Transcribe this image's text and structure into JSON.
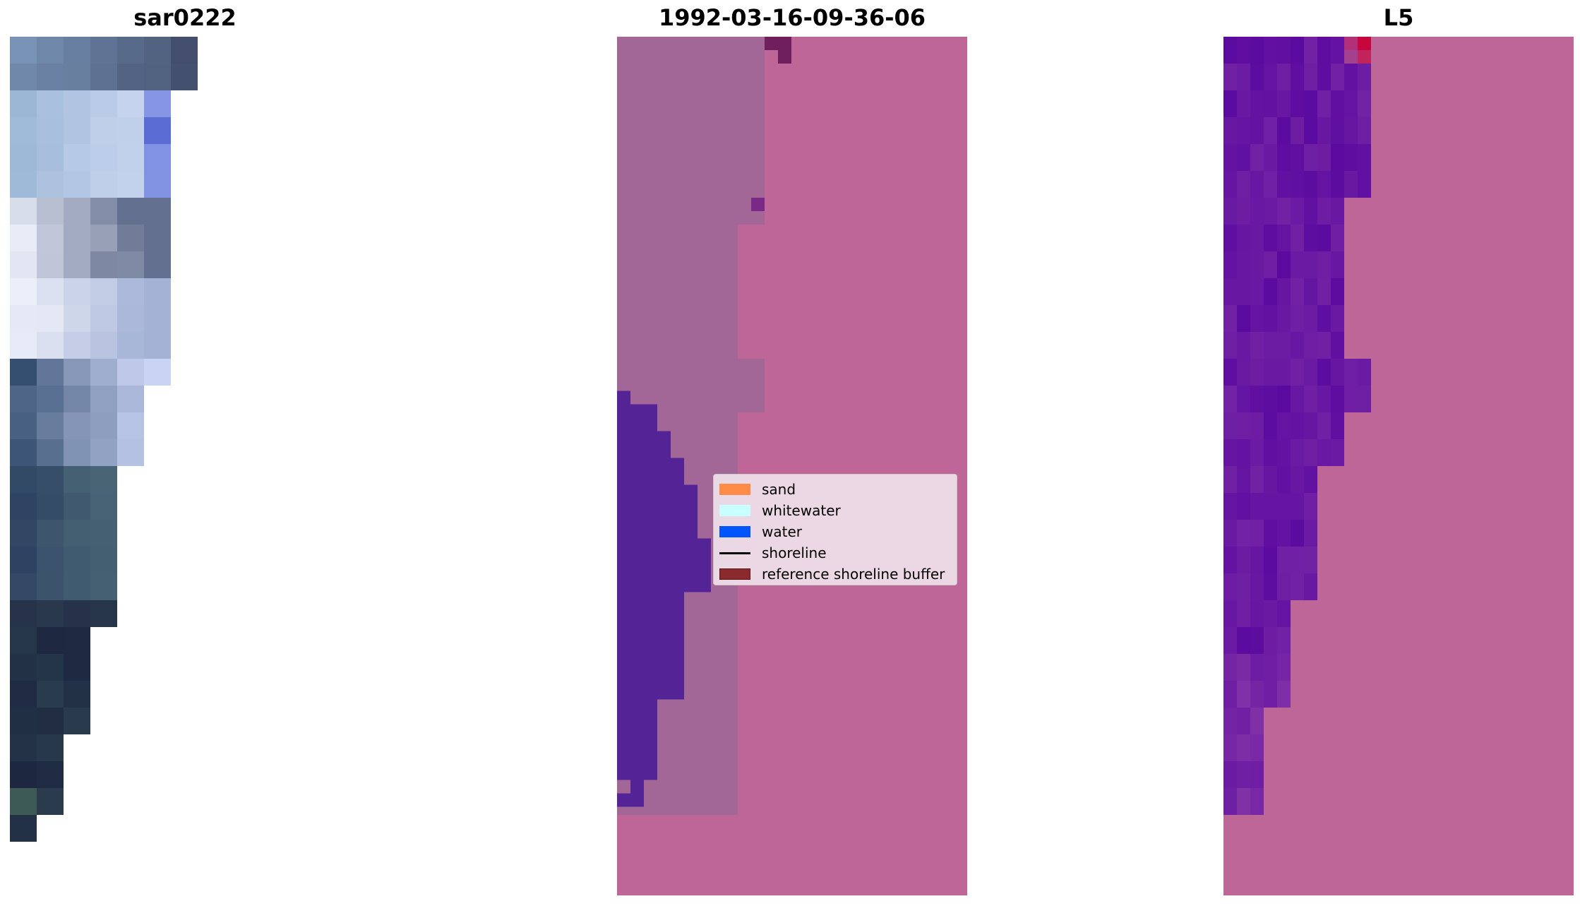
{
  "panels": [
    {
      "title": "sar0222"
    },
    {
      "title": "1992-03-16-09-36-06"
    },
    {
      "title": "L5"
    }
  ],
  "legend": {
    "items": [
      {
        "label": "sand",
        "color": "#ff8c46"
      },
      {
        "label": "whitewater",
        "color": "#c8ffff"
      },
      {
        "label": "water",
        "color": "#0055ff"
      },
      {
        "label": "shoreline",
        "color": "#000000"
      },
      {
        "label": "reference shoreline buffer",
        "color": "#8b2a2e"
      }
    ]
  },
  "colors": {
    "sand_overlay": "#bd6697",
    "land_overlay": "#a36797",
    "water_overlay": "#542496",
    "index_low": "#5b0aa0",
    "index_high": "#c8063e"
  }
}
